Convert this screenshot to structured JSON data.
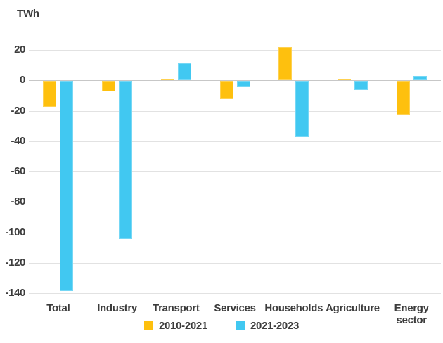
{
  "chart_data": {
    "type": "bar",
    "title": "",
    "ylabel": "TWh",
    "xlabel": "",
    "categories": [
      "Total",
      "Industry",
      "Transport",
      "Services",
      "Households",
      "Agriculture",
      "Energy sector"
    ],
    "series": [
      {
        "name": "2010-2021",
        "color": "#FEC00E",
        "values": [
          -17,
          -7,
          1,
          -12,
          22,
          0.5,
          -22
        ]
      },
      {
        "name": "2021-2023",
        "color": "#41C8F1",
        "values": [
          -138,
          -104,
          11,
          -4,
          -37,
          -6,
          3
        ]
      }
    ],
    "axis_max": 20,
    "axis_min": -140,
    "yticks": [
      20,
      0,
      -20,
      -40,
      -60,
      -80,
      -100,
      -120,
      -140
    ],
    "grid": true,
    "legend_position": "bottom",
    "text_color": "#3C3C3C",
    "gridline_color": "#E2E2E2",
    "zero_line_color": "#C7C7C7"
  }
}
